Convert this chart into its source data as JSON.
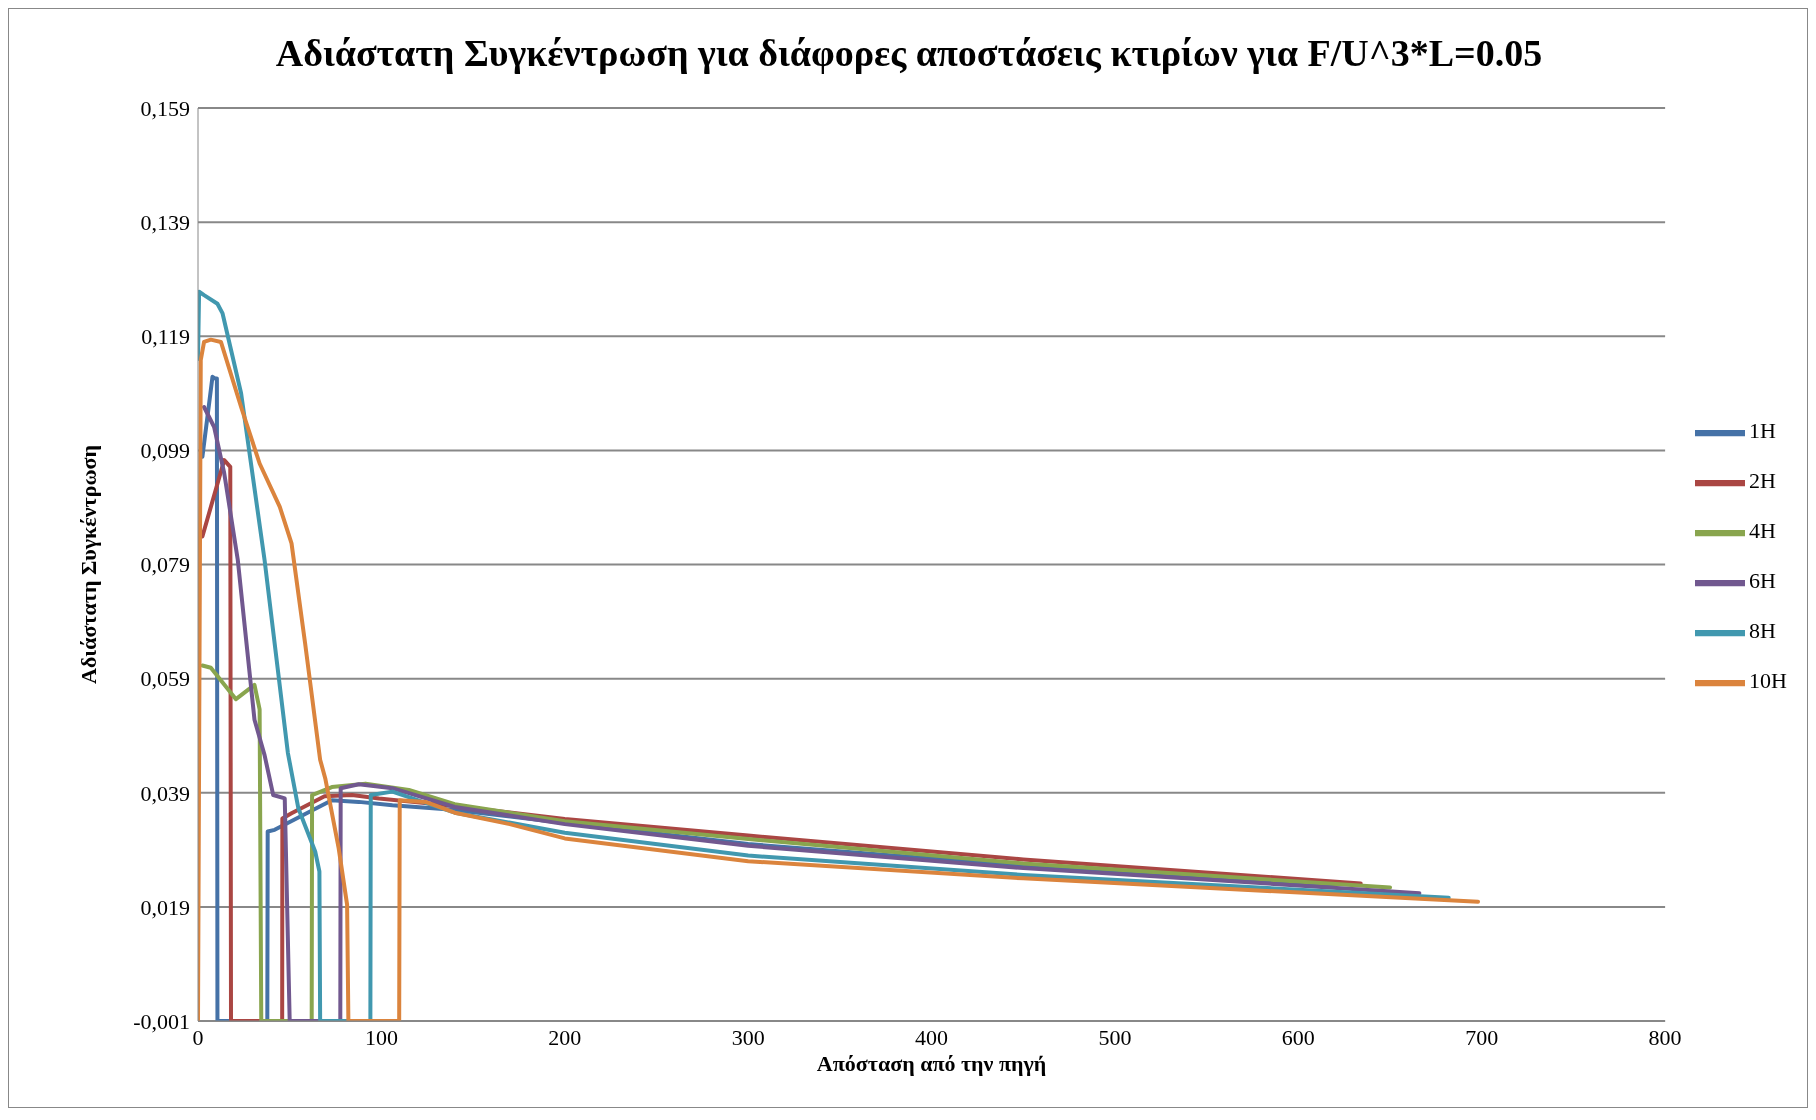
{
  "chart_data": {
    "type": "line",
    "title": "Αδιάστατη Συγκέντρωση για διάφορες αποστάσεις κτιρίων για F/U^3*L=0.05",
    "xlabel": "Απόσταση από την πηγή",
    "ylabel": "Αδιάστατη Συγκέντρωση",
    "xlim": [
      0,
      800
    ],
    "xticks": [
      0,
      100,
      200,
      300,
      400,
      500,
      600,
      700,
      800
    ],
    "ylim": [
      -0.001,
      0.159
    ],
    "yticks": [
      {
        "value": -0.001,
        "label": "-0,001"
      },
      {
        "value": 0.019,
        "label": "0,019"
      },
      {
        "value": 0.039,
        "label": "0,039"
      },
      {
        "value": 0.059,
        "label": "0,059"
      },
      {
        "value": 0.079,
        "label": "0,079"
      },
      {
        "value": 0.099,
        "label": "0,099"
      },
      {
        "value": 0.119,
        "label": "0,119"
      },
      {
        "value": 0.139,
        "label": "0,139"
      },
      {
        "value": 0.159,
        "label": "0,159"
      }
    ],
    "grid": "y",
    "legend": "right",
    "marker": "none",
    "line_style": "solid",
    "series": [
      {
        "name": "1H",
        "color": "#4572a7",
        "x": [
          2.4,
          7.9,
          9.2,
          10.3,
          10.6,
          37.8,
          38,
          41.8,
          73,
          87.7,
          106,
          139,
          200,
          300,
          450,
          620
        ],
        "values": [
          0.0979,
          0.1119,
          0.1116,
          0.1116,
          -0.001,
          -0.001,
          0.0322,
          0.0325,
          0.0377,
          0.0374,
          0.0368,
          0.036,
          0.0337,
          0.03,
          0.0262,
          0.0225
        ]
      },
      {
        "name": "2H",
        "color": "#aa4643",
        "x": [
          2.4,
          14.3,
          17.6,
          18,
          45.9,
          46,
          51,
          69,
          84,
          98.7,
          139,
          200,
          300,
          450,
          634
        ],
        "values": [
          0.0839,
          0.0973,
          0.0961,
          -0.001,
          -0.001,
          0.0345,
          0.0354,
          0.0384,
          0.0386,
          0.038,
          0.0367,
          0.0344,
          0.0315,
          0.0273,
          0.0231
        ]
      },
      {
        "name": "4H",
        "color": "#89a54e",
        "x": [
          2.4,
          7,
          20.7,
          30.8,
          33.6,
          34.5,
          62,
          62.2,
          73,
          91.4,
          115,
          140,
          200,
          300,
          450,
          650
        ],
        "values": [
          0.0613,
          0.0609,
          0.0554,
          0.0579,
          0.0536,
          -0.001,
          -0.001,
          0.0386,
          0.04,
          0.0406,
          0.0395,
          0.037,
          0.034,
          0.0309,
          0.0266,
          0.0224
        ]
      },
      {
        "name": "6H",
        "color": "#71588f",
        "x": [
          3.3,
          8.8,
          14.3,
          21.7,
          30.8,
          36.3,
          41,
          47.3,
          50,
          77.6,
          77.8,
          87.7,
          106,
          140,
          200,
          300,
          450,
          666
        ],
        "values": [
          0.1066,
          0.1031,
          0.095,
          0.0798,
          0.0518,
          0.0456,
          0.0386,
          0.038,
          -0.001,
          -0.001,
          0.0398,
          0.0405,
          0.0398,
          0.0365,
          0.0335,
          0.0297,
          0.0258,
          0.0214
        ]
      },
      {
        "name": "8H",
        "color": "#4198af",
        "x": [
          0,
          0.6,
          3.3,
          10.6,
          13.4,
          23.5,
          36.3,
          49,
          54.7,
          63.9,
          66.2,
          66.6,
          94,
          94.2,
          106,
          140,
          200,
          300,
          450,
          682
        ],
        "values": [
          0.115,
          0.1268,
          0.1262,
          0.1247,
          0.123,
          0.109,
          0.0798,
          0.046,
          0.0363,
          0.0287,
          0.0252,
          -0.001,
          -0.001,
          0.0386,
          0.0392,
          0.0355,
          0.032,
          0.028,
          0.0246,
          0.0206
        ]
      },
      {
        "name": "10H",
        "color": "#db843d",
        "x": [
          0,
          1.5,
          3.3,
          7,
          12.5,
          23.5,
          33.6,
          44.6,
          51,
          58.4,
          66.6,
          69.4,
          76.7,
          81.3,
          82,
          109.7,
          110,
          124,
          140,
          170,
          200,
          300,
          450,
          698
        ],
        "values": [
          -0.001,
          0.1148,
          0.118,
          0.1184,
          0.118,
          0.1066,
          0.0967,
          0.0891,
          0.0827,
          0.0652,
          0.0448,
          0.0415,
          0.0293,
          0.0194,
          -0.001,
          -0.001,
          0.0377,
          0.0374,
          0.0355,
          0.0335,
          0.031,
          0.027,
          0.024,
          0.0199
        ]
      }
    ]
  }
}
